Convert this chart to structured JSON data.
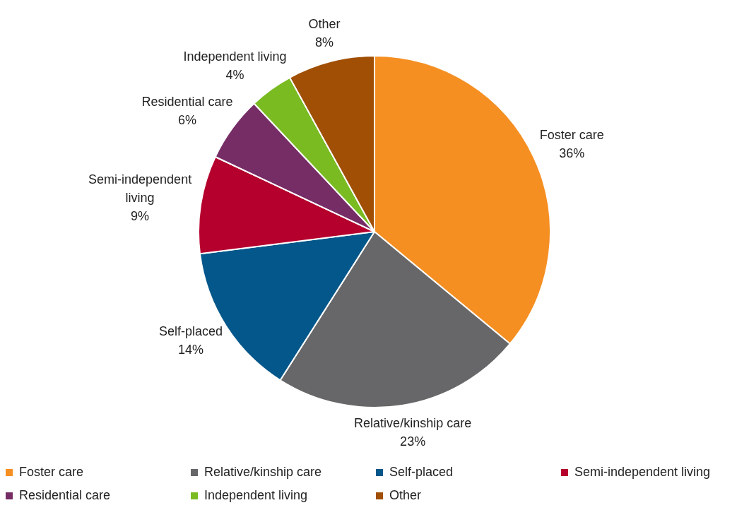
{
  "chart_data": {
    "type": "pie",
    "categories": [
      "Foster care",
      "Relative/kinship care",
      "Self-placed",
      "Semi-independent living",
      "Residential care",
      "Independent living",
      "Other"
    ],
    "values": [
      36,
      23,
      14,
      9,
      6,
      4,
      8
    ],
    "value_labels": [
      "36%",
      "23%",
      "14%",
      "9%",
      "6%",
      "4%",
      "8%"
    ],
    "colors": [
      "#f58f22",
      "#676769",
      "#04578a",
      "#b5002e",
      "#762d66",
      "#79bb21",
      "#a04f05"
    ],
    "legend": "bottom"
  }
}
